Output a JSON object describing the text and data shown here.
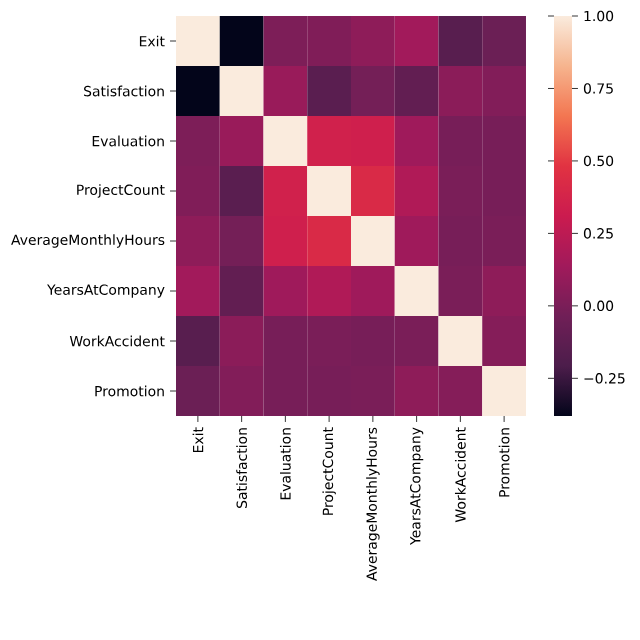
{
  "chart_data": {
    "type": "heatmap",
    "categories": [
      "Exit",
      "Satisfaction",
      "Evaluation",
      "ProjectCount",
      "AverageMonthlyHours",
      "YearsAtCompany",
      "WorkAccident",
      "Promotion"
    ],
    "y_categories": [
      "Exit",
      "Satisfaction",
      "Evaluation",
      "ProjectCount",
      "AverageMonthlyHours",
      "YearsAtCompany",
      "WorkAccident",
      "Promotion"
    ],
    "cells": [
      [
        1,
        -0.39,
        0.01,
        0.02,
        0.07,
        0.14,
        -0.15,
        -0.06
      ],
      [
        -0.39,
        1,
        0.11,
        -0.14,
        -0.02,
        -0.1,
        0.06,
        0.03
      ],
      [
        0.01,
        0.11,
        1,
        0.35,
        0.34,
        0.13,
        -0.01,
        -0.01
      ],
      [
        0.02,
        -0.14,
        0.35,
        1,
        0.42,
        0.2,
        0.0,
        -0.01
      ],
      [
        0.07,
        -0.02,
        0.34,
        0.42,
        1,
        0.13,
        -0.01,
        0.0
      ],
      [
        0.14,
        -0.1,
        0.13,
        0.2,
        0.13,
        1,
        0.0,
        0.07
      ],
      [
        -0.15,
        0.06,
        -0.01,
        0.0,
        -0.01,
        0.0,
        1,
        0.04
      ],
      [
        -0.06,
        0.03,
        -0.01,
        -0.01,
        0.0,
        0.07,
        0.04,
        1
      ]
    ],
    "clim": [
      -0.38,
      1.0
    ],
    "cticks": [
      {
        "value": -0.25,
        "label": "−0.25"
      },
      {
        "value": 0,
        "label": "0.00"
      },
      {
        "value": 0.25,
        "label": "0.25"
      },
      {
        "value": 0.5,
        "label": "0.50"
      },
      {
        "value": 0.75,
        "label": "0.75"
      },
      {
        "value": 1,
        "label": "1.00"
      }
    ]
  }
}
